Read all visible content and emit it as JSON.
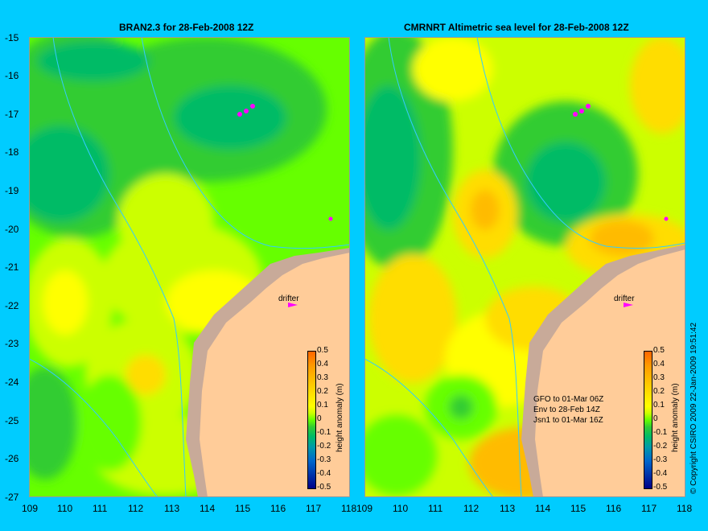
{
  "left_map": {
    "title": "BRAN2.3 for 28-Feb-2008 12Z",
    "drifter_label": "drifter",
    "colorbar_title": "height anomaly (m)"
  },
  "right_map": {
    "title": "CMRNRT Altimetric sea level  for 28-Feb-2008 12Z",
    "drifter_label": "drifter",
    "colorbar_title": "height anomaly (m)",
    "notes": [
      "GFO to 01-Mar 06Z",
      "Env to 28-Feb 14Z",
      "Jsn1 to 01-Mar 16Z"
    ]
  },
  "axes": {
    "lat_ticks": [
      "-15",
      "-16",
      "-17",
      "-18",
      "-19",
      "-20",
      "-21",
      "-22",
      "-23",
      "-24",
      "-25",
      "-26",
      "-27"
    ],
    "lon_ticks": [
      "109",
      "110",
      "111",
      "112",
      "113",
      "114",
      "115",
      "116",
      "117",
      "118"
    ]
  },
  "colorbar": {
    "ticks": [
      "0.5",
      "0.4",
      "0.3",
      "0.2",
      "0.1",
      "0",
      "-0.1",
      "-0.2",
      "-0.3",
      "-0.4",
      "-0.5"
    ],
    "colors": [
      "#ff6600",
      "#ff9900",
      "#ffbb00",
      "#ffdd00",
      "#ffff00",
      "#ccff00",
      "#66ff00",
      "#33cc33",
      "#00bb66",
      "#0099aa",
      "#0066cc",
      "#0033aa",
      "#000088"
    ]
  },
  "copyright": "© Copyright CSIRO 2009   22-Jan-2009 19:51:42",
  "colors": {
    "background": "#00ccff",
    "land": "#ffcc99",
    "shelf_land": "#c8aa99",
    "isobath": "#33ccff",
    "drifter": "#ff00ff"
  }
}
